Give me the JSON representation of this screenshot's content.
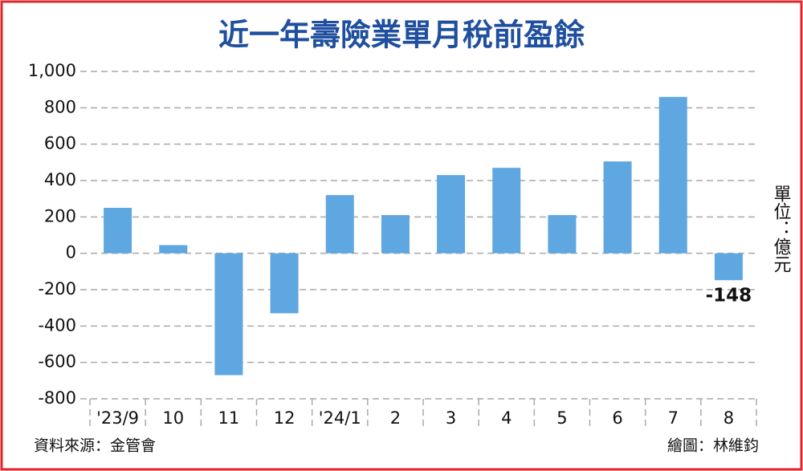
{
  "chart_data": {
    "type": "bar",
    "title": "近一年壽險業單月稅前盈餘",
    "categories": [
      "'23/9",
      "10",
      "11",
      "12",
      "'24/1",
      "2",
      "3",
      "4",
      "5",
      "6",
      "7",
      "8"
    ],
    "values": [
      250,
      45,
      -670,
      -330,
      320,
      210,
      430,
      470,
      210,
      505,
      860,
      -148
    ],
    "value_labels": [
      null,
      null,
      null,
      null,
      null,
      null,
      null,
      null,
      null,
      null,
      null,
      "-148"
    ],
    "color": "#5ea7e0",
    "ylim": [
      -800,
      1000
    ],
    "yticks": [
      -800,
      -600,
      -400,
      -200,
      0,
      200,
      400,
      600,
      800,
      {
        "value": 1000,
        "label": "1,000"
      }
    ],
    "grid": true,
    "unit": "單位：億元",
    "source": "資料來源：金管會",
    "credit": "繪圖：林維鈞"
  }
}
